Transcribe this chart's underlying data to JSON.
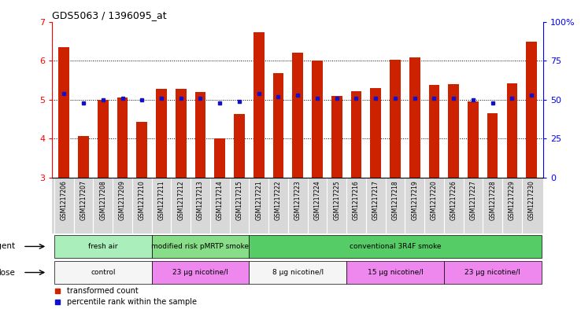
{
  "title": "GDS5063 / 1396095_at",
  "samples": [
    "GSM1217206",
    "GSM1217207",
    "GSM1217208",
    "GSM1217209",
    "GSM1217210",
    "GSM1217211",
    "GSM1217212",
    "GSM1217213",
    "GSM1217214",
    "GSM1217215",
    "GSM1217221",
    "GSM1217222",
    "GSM1217223",
    "GSM1217224",
    "GSM1217225",
    "GSM1217216",
    "GSM1217217",
    "GSM1217218",
    "GSM1217219",
    "GSM1217220",
    "GSM1217226",
    "GSM1217227",
    "GSM1217228",
    "GSM1217229",
    "GSM1217230"
  ],
  "bar_values": [
    6.35,
    4.07,
    5.0,
    5.05,
    4.43,
    5.28,
    5.27,
    5.2,
    4.0,
    4.63,
    6.72,
    5.68,
    6.2,
    6.0,
    5.1,
    5.22,
    5.3,
    6.02,
    6.08,
    5.38,
    5.4,
    4.95,
    4.65,
    5.42,
    6.48
  ],
  "percentile_values": [
    54,
    48,
    50,
    51,
    50,
    51,
    51,
    51,
    48,
    49,
    54,
    52,
    53,
    51,
    51,
    51,
    51,
    51,
    51,
    51,
    51,
    50,
    48,
    51,
    53
  ],
  "bar_color": "#cc2200",
  "dot_color": "#1111cc",
  "ylim_left": [
    3,
    7
  ],
  "ylim_right": [
    0,
    100
  ],
  "yticks_left": [
    3,
    4,
    5,
    6,
    7
  ],
  "yticks_right": [
    0,
    25,
    50,
    75,
    100
  ],
  "agent_groups": [
    {
      "label": "fresh air",
      "start": 0,
      "end": 4,
      "color": "#aaeebb"
    },
    {
      "label": "modified risk pMRTP smoke",
      "start": 5,
      "end": 9,
      "color": "#88dd88"
    },
    {
      "label": "conventional 3R4F smoke",
      "start": 10,
      "end": 24,
      "color": "#55cc66"
    }
  ],
  "dose_groups": [
    {
      "label": "control",
      "start": 0,
      "end": 4,
      "color": "#f5f5f5"
    },
    {
      "label": "23 μg nicotine/l",
      "start": 5,
      "end": 9,
      "color": "#ee88ee"
    },
    {
      "label": "8 μg nicotine/l",
      "start": 10,
      "end": 14,
      "color": "#f5f5f5"
    },
    {
      "label": "15 μg nicotine/l",
      "start": 15,
      "end": 19,
      "color": "#ee88ee"
    },
    {
      "label": "23 μg nicotine/l",
      "start": 20,
      "end": 24,
      "color": "#ee88ee"
    }
  ],
  "legend_items": [
    {
      "label": "transformed count",
      "color": "#cc2200"
    },
    {
      "label": "percentile rank within the sample",
      "color": "#1111cc"
    }
  ],
  "bar_width": 0.55,
  "background_color": "#ffffff",
  "xtick_bg_color": "#d8d8d8"
}
